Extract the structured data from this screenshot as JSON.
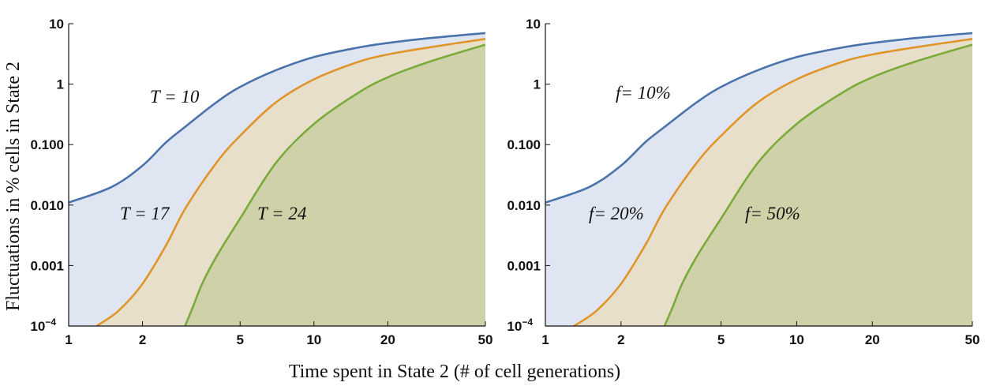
{
  "chart_data": [
    {
      "type": "area",
      "panel": "left",
      "title": "",
      "xlabel": "Time spent in State 2 (# of cell generations)",
      "ylabel": "Fluctuations in % cells in State 2",
      "xscale": "log",
      "yscale": "log",
      "xlim": [
        1,
        50
      ],
      "ylim": [
        0.0001,
        10
      ],
      "xticks": [
        1,
        2,
        5,
        10,
        20,
        50
      ],
      "xtick_labels": [
        "1",
        "2",
        "5",
        "10",
        "20",
        "50"
      ],
      "yticks": [
        0.0001,
        0.001,
        0.01,
        0.1,
        1,
        10
      ],
      "ytick_labels": [
        "10⁻⁴",
        "0.001",
        "0.010",
        "0.100",
        "1",
        "10"
      ],
      "series": [
        {
          "name": "T = 10",
          "label": "T = 10",
          "color": "#4a72ab",
          "fill": "#dfe6f2",
          "x": [
            1,
            1.5,
            2,
            2.5,
            3,
            4,
            5,
            7,
            10,
            15,
            20,
            30,
            50
          ],
          "y": [
            0.011,
            0.02,
            0.045,
            0.11,
            0.2,
            0.5,
            0.9,
            1.7,
            2.8,
            4.0,
            4.8,
            5.8,
            7.0
          ]
        },
        {
          "name": "T = 17",
          "label": "T = 17",
          "color": "#e0952a",
          "fill": "#e8dfcb",
          "x": [
            1.3,
            1.6,
            2,
            2.5,
            3,
            4,
            5,
            7,
            10,
            15,
            20,
            30,
            50
          ],
          "y": [
            0.0001,
            0.00018,
            0.0005,
            0.0022,
            0.009,
            0.05,
            0.14,
            0.5,
            1.2,
            2.3,
            3.1,
            4.1,
            5.6
          ]
        },
        {
          "name": "T = 24",
          "label": "T = 24",
          "color": "#7aab3a",
          "fill": "#cfd1a8",
          "x": [
            2.98,
            3.2,
            3.5,
            4,
            5,
            7,
            10,
            15,
            20,
            30,
            50
          ],
          "y": [
            0.0001,
            0.0002,
            0.0005,
            0.0014,
            0.006,
            0.05,
            0.22,
            0.7,
            1.3,
            2.4,
            4.5
          ]
        }
      ]
    },
    {
      "type": "area",
      "panel": "right",
      "title": "",
      "xlabel": "Time spent in State 2 (# of cell generations)",
      "ylabel": "",
      "xscale": "log",
      "yscale": "log",
      "xlim": [
        1,
        50
      ],
      "ylim": [
        0.0001,
        10
      ],
      "xticks": [
        1,
        2,
        5,
        10,
        20,
        50
      ],
      "xtick_labels": [
        "1",
        "2",
        "5",
        "10",
        "20",
        "50"
      ],
      "yticks": [
        0.0001,
        0.001,
        0.01,
        0.1,
        1,
        10
      ],
      "ytick_labels": [
        "10⁻⁴",
        "0.001",
        "0.010",
        "0.100",
        "1",
        "10"
      ],
      "series": [
        {
          "name": "f = 10%",
          "label": "f= 10%",
          "color": "#4a72ab",
          "fill": "#dfe6f2",
          "x": [
            1,
            1.5,
            2,
            2.5,
            3,
            4,
            5,
            7,
            10,
            15,
            20,
            30,
            50
          ],
          "y": [
            0.011,
            0.02,
            0.045,
            0.11,
            0.2,
            0.5,
            0.9,
            1.7,
            2.8,
            4.0,
            4.8,
            5.8,
            7.0
          ]
        },
        {
          "name": "f = 20%",
          "label": "f= 20%",
          "color": "#e0952a",
          "fill": "#e8dfcb",
          "x": [
            1.3,
            1.6,
            2,
            2.5,
            3,
            4,
            5,
            7,
            10,
            15,
            20,
            30,
            50
          ],
          "y": [
            0.0001,
            0.00018,
            0.0005,
            0.0022,
            0.009,
            0.05,
            0.14,
            0.5,
            1.2,
            2.3,
            3.1,
            4.1,
            5.6
          ]
        },
        {
          "name": "f = 50%",
          "label": "f= 50%",
          "color": "#7aab3a",
          "fill": "#cfd1a8",
          "x": [
            2.98,
            3.2,
            3.5,
            4,
            5,
            7,
            10,
            15,
            20,
            30,
            50
          ],
          "y": [
            0.0001,
            0.0002,
            0.0005,
            0.0014,
            0.006,
            0.05,
            0.22,
            0.7,
            1.3,
            2.4,
            4.5
          ]
        }
      ]
    }
  ]
}
